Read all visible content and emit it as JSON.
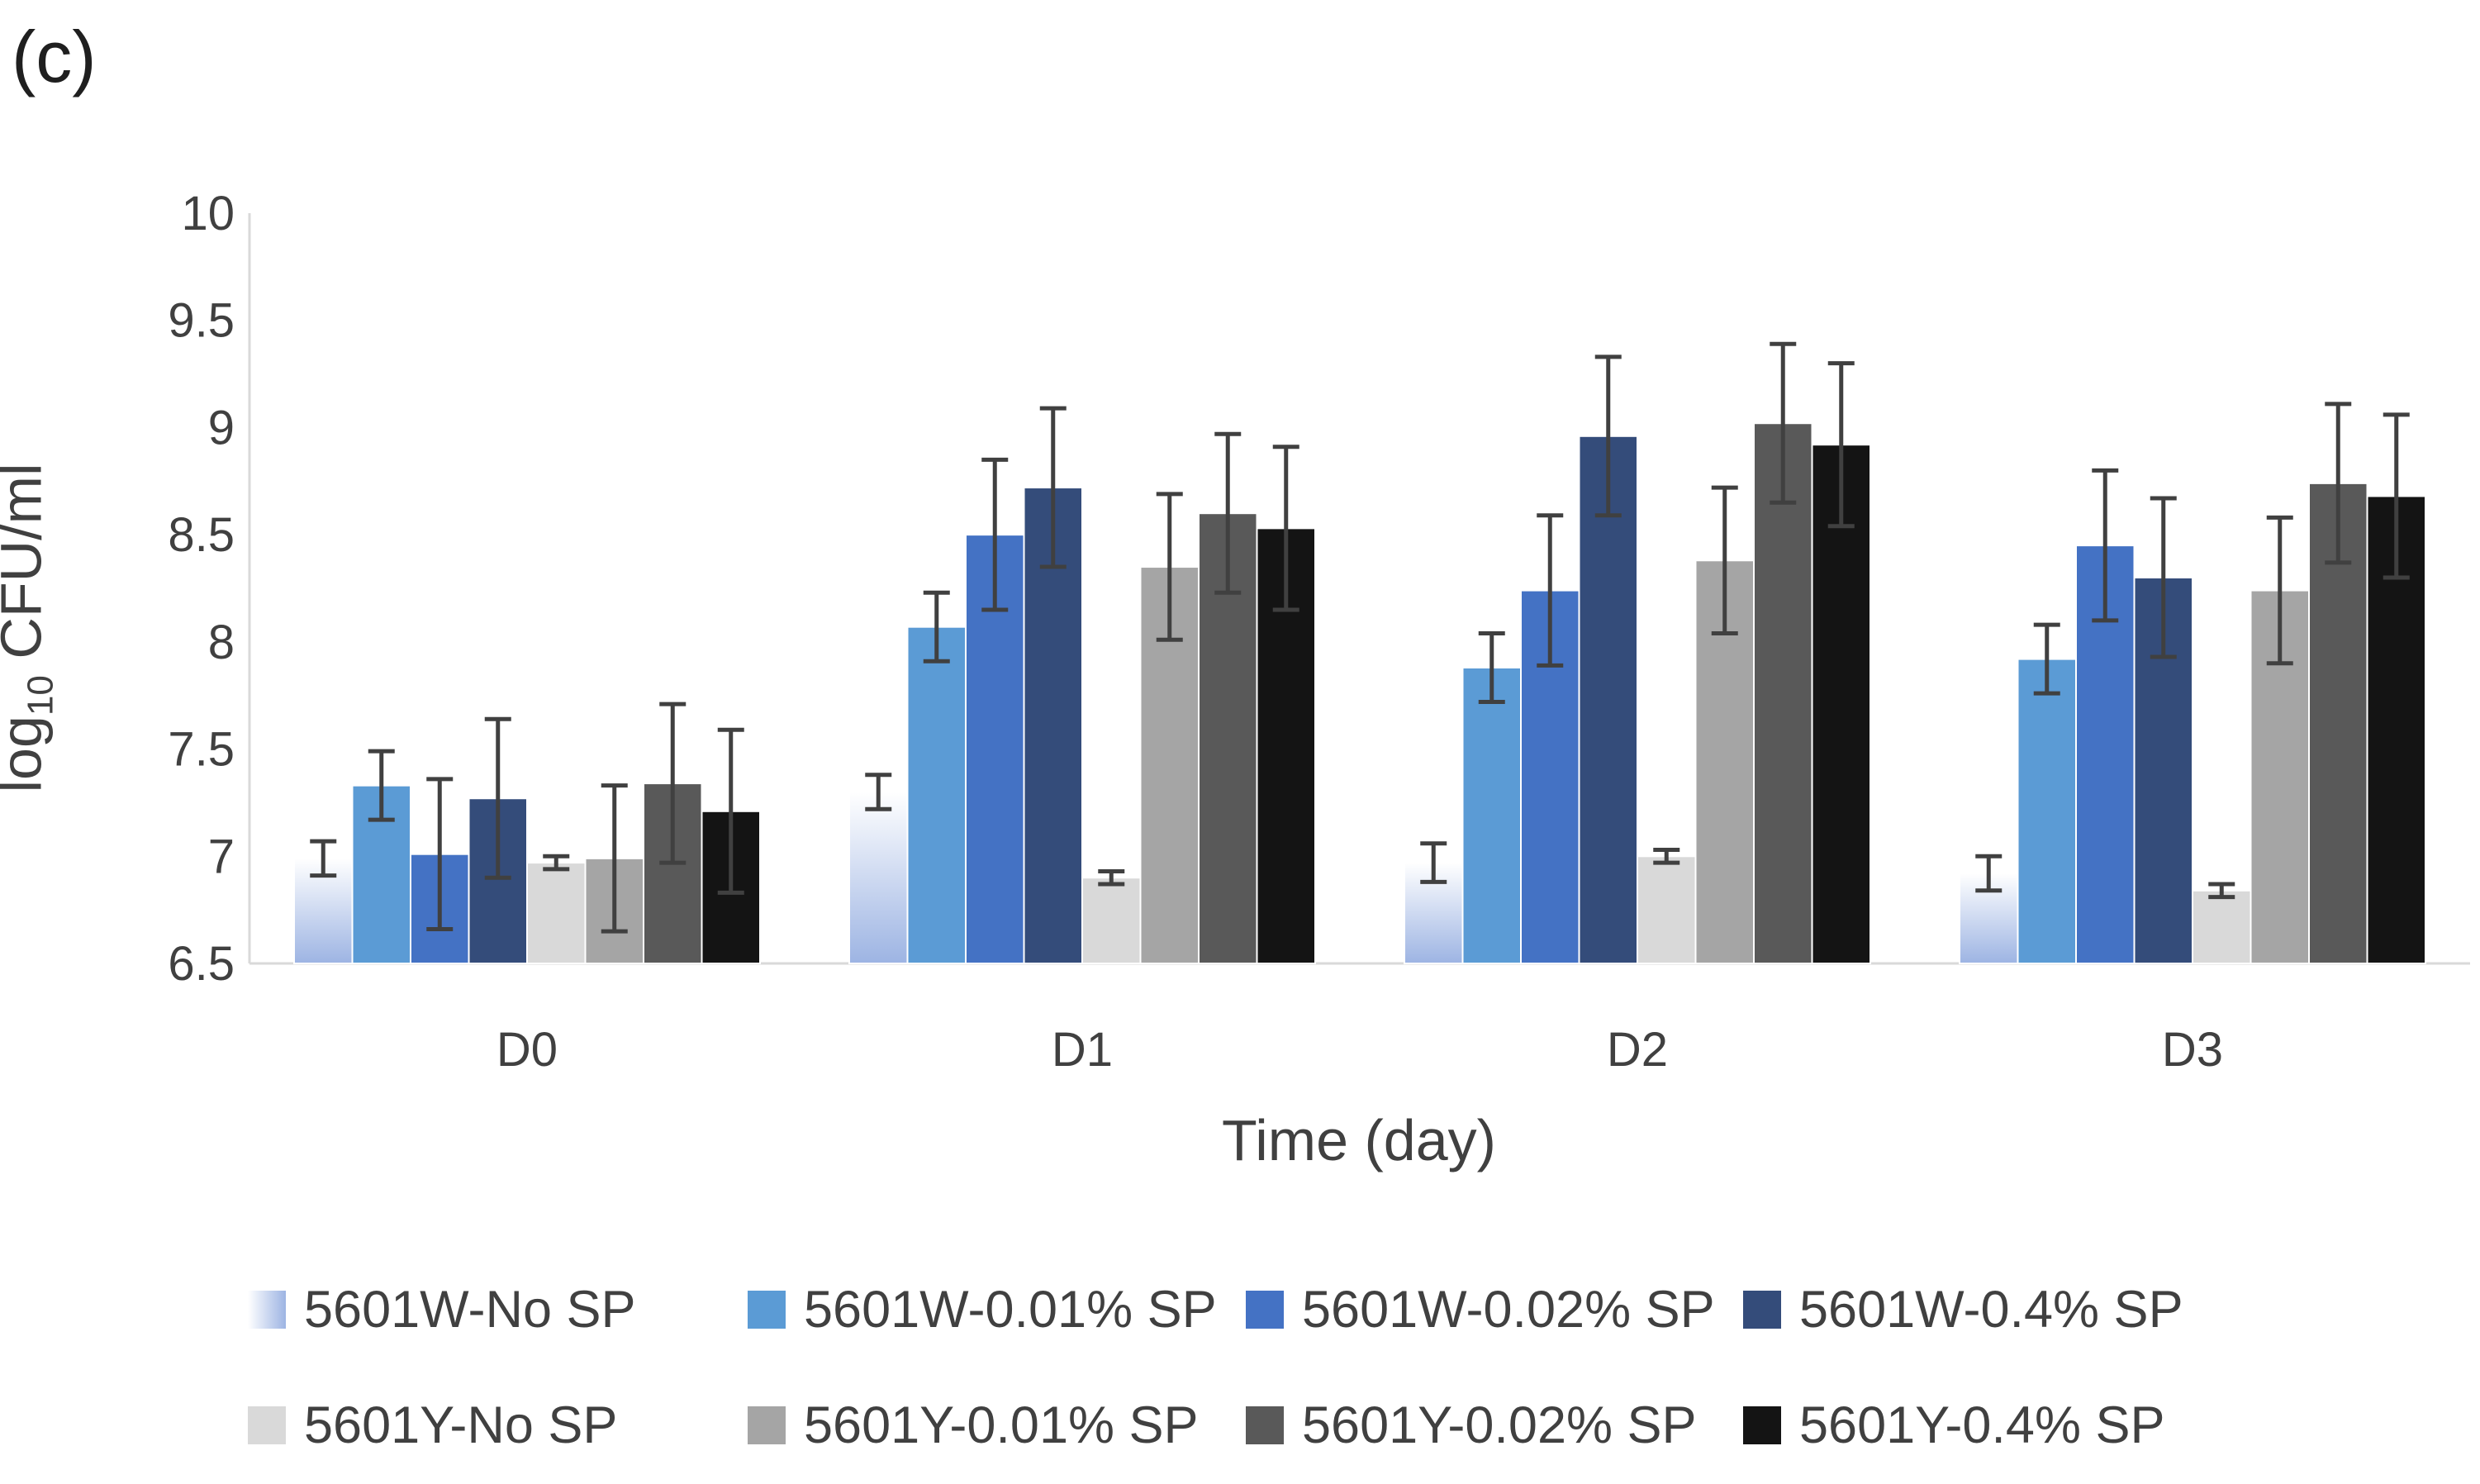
{
  "panel_label": "(c)",
  "chart_data": {
    "type": "bar",
    "title": "",
    "xlabel": "Time (day)",
    "ylabel_prefix": "log",
    "ylabel_sub": "10",
    "ylabel_suffix": " CFU/ml",
    "ylim": [
      6.5,
      10
    ],
    "yticks": [
      6.5,
      7,
      7.5,
      8,
      8.5,
      9,
      9.5,
      10
    ],
    "ytick_labels": [
      "6.5",
      "7",
      "7.5",
      "8",
      "8.5",
      "9",
      "9.5",
      "10"
    ],
    "categories": [
      "D0",
      "D1",
      "D2",
      "D3"
    ],
    "legend_position": "bottom",
    "series": [
      {
        "name": "5601W-No SP",
        "color": "#b4c6e7",
        "gradient": true,
        "values": [
          6.99,
          7.3,
          6.97,
          6.92
        ],
        "errors": [
          0.08,
          0.08,
          0.09,
          0.08
        ]
      },
      {
        "name": "5601W-0.01% SP",
        "color": "#5b9bd5",
        "values": [
          7.33,
          8.07,
          7.88,
          7.92
        ],
        "errors": [
          0.16,
          0.16,
          0.16,
          0.16
        ]
      },
      {
        "name": "5601W-0.02% SP",
        "color": "#4472c4",
        "values": [
          7.01,
          8.5,
          8.24,
          8.45
        ],
        "errors": [
          0.35,
          0.35,
          0.35,
          0.35
        ]
      },
      {
        "name": "5601W-0.4% SP",
        "color": "#344c7a",
        "values": [
          7.27,
          8.72,
          8.96,
          8.3
        ],
        "errors": [
          0.37,
          0.37,
          0.37,
          0.37
        ]
      },
      {
        "name": "5601Y-No SP",
        "color": "#d9d9d9",
        "values": [
          6.97,
          6.9,
          7.0,
          6.84
        ],
        "errors": [
          0.03,
          0.03,
          0.03,
          0.03
        ]
      },
      {
        "name": "5601Y-0.01% SP",
        "color": "#a5a5a5",
        "values": [
          6.99,
          8.35,
          8.38,
          8.24
        ],
        "errors": [
          0.34,
          0.34,
          0.34,
          0.34
        ]
      },
      {
        "name": "5601Y-0.02% SP",
        "color": "#595959",
        "values": [
          7.34,
          8.6,
          9.02,
          8.74
        ],
        "errors": [
          0.37,
          0.37,
          0.37,
          0.37
        ]
      },
      {
        "name": "5601Y-0.4% SP",
        "color": "#141414",
        "values": [
          7.21,
          8.53,
          8.92,
          8.68
        ],
        "errors": [
          0.38,
          0.38,
          0.38,
          0.38
        ]
      }
    ]
  }
}
